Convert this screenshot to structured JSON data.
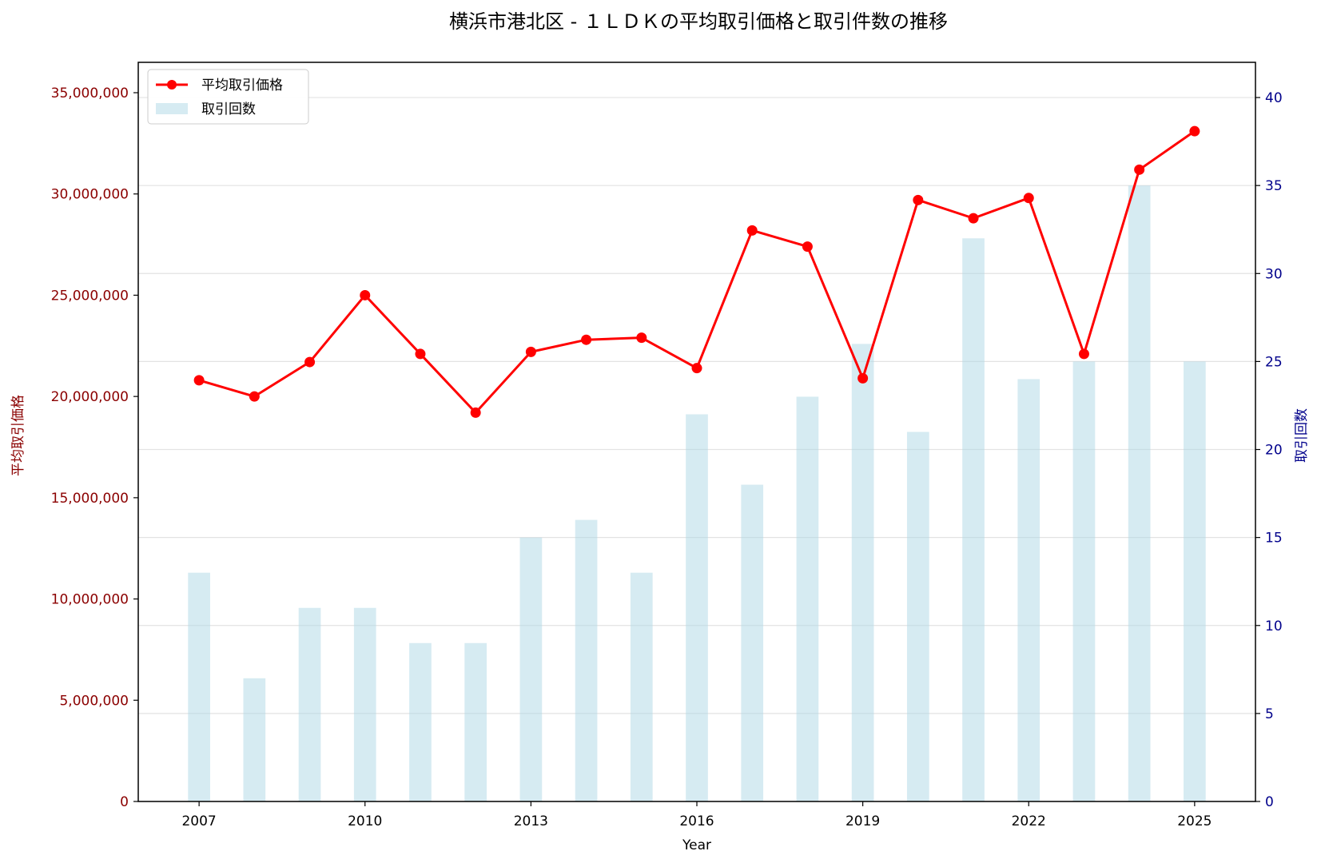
{
  "chart_data": {
    "type": "bar+line",
    "title": "横浜市港北区 - １ＬＤＫの平均取引価格と取引件数の推移",
    "xlabel": "Year",
    "ylabel_left": "平均取引価格",
    "ylabel_right": "取引回数",
    "x": [
      2007,
      2008,
      2009,
      2010,
      2011,
      2012,
      2013,
      2014,
      2015,
      2016,
      2017,
      2018,
      2019,
      2020,
      2021,
      2022,
      2023,
      2024,
      2025
    ],
    "xlim": [
      2005.9,
      2026.1
    ],
    "x_ticks": [
      2007,
      2010,
      2013,
      2016,
      2019,
      2022,
      2025
    ],
    "x_tick_labels": [
      "2007",
      "2010",
      "2013",
      "2016",
      "2019",
      "2022",
      "2025"
    ],
    "y_left_ticks": [
      0,
      5000000,
      10000000,
      15000000,
      20000000,
      25000000,
      30000000,
      35000000
    ],
    "y_left_tick_labels": [
      "0",
      "5,000,000",
      "10,000,000",
      "15,000,000",
      "20,000,000",
      "25,000,000",
      "30,000,000",
      "35,000,000"
    ],
    "y_right_ticks": [
      0,
      5,
      10,
      15,
      20,
      25,
      30,
      35,
      40
    ],
    "y_right_tick_labels": [
      "0",
      "5",
      "10",
      "15",
      "20",
      "25",
      "30",
      "35",
      "40"
    ],
    "ylim_left": [
      0,
      36500000
    ],
    "ylim_right": [
      0,
      42
    ],
    "grid": "horizontal",
    "legend_position": "top-left",
    "series": [
      {
        "name": "平均取引価格",
        "type": "line",
        "axis": "left",
        "color": "#ff0000",
        "values": [
          20800000,
          20000000,
          21700000,
          25000000,
          22100000,
          19200000,
          22200000,
          22800000,
          22900000,
          21400000,
          28200000,
          27400000,
          20900000,
          29700000,
          28800000,
          29800000,
          22100000,
          31200000,
          33100000
        ]
      },
      {
        "name": "取引回数",
        "type": "bar",
        "axis": "right",
        "color": "#add8e6",
        "values": [
          13,
          7,
          11,
          11,
          9,
          9,
          15,
          16,
          13,
          22,
          18,
          23,
          26,
          21,
          32,
          24,
          25,
          35,
          25
        ]
      }
    ],
    "colors": {
      "left_axis": "#8b0000",
      "right_axis": "#00008b",
      "line": "#ff0000",
      "bar": "#add8e6"
    }
  }
}
